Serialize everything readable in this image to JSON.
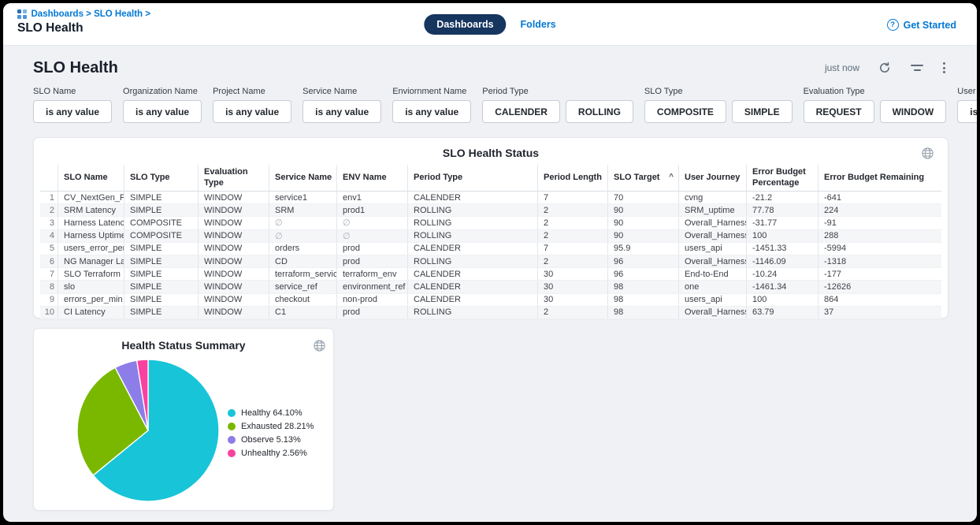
{
  "topbar": {
    "breadcrumb": "Dashboards > SLO Health >",
    "title": "SLO Health",
    "tabs": [
      {
        "label": "Dashboards",
        "active": true
      },
      {
        "label": "Folders",
        "active": false
      }
    ],
    "get_started": "Get Started"
  },
  "header": {
    "title": "SLO Health",
    "updated": "just now"
  },
  "icons": {
    "help": "?",
    "sort_ascending": "^"
  },
  "filters": [
    {
      "label": "SLO Name",
      "buttons": [
        "is any value"
      ]
    },
    {
      "label": "Organization Name",
      "buttons": [
        "is any value"
      ]
    },
    {
      "label": "Project Name",
      "buttons": [
        "is any value"
      ]
    },
    {
      "label": "Service Name",
      "buttons": [
        "is any value"
      ]
    },
    {
      "label": "Enviornment Name",
      "buttons": [
        "is any value"
      ]
    },
    {
      "label": "Period Type",
      "buttons": [
        "CALENDER",
        "ROLLING"
      ]
    },
    {
      "label": "SLO Type",
      "buttons": [
        "COMPOSITE",
        "SIMPLE"
      ]
    },
    {
      "label": "Evaluation Type",
      "buttons": [
        "REQUEST",
        "WINDOW"
      ]
    },
    {
      "label": "User Journey",
      "buttons": [
        "is any value"
      ]
    }
  ],
  "table": {
    "title": "SLO Health Status",
    "columns": [
      "SLO Name",
      "SLO Type",
      "Evaluation Type",
      "Service Name",
      "ENV Name",
      "Period Type",
      "Period Length",
      "SLO Target",
      "User Journey",
      "Error Budget Percentage",
      "Error Budget Remaining"
    ],
    "sort_column_index": 7,
    "sort_direction": "asc",
    "null_symbol": "∅",
    "rows": [
      [
        "CV_NextGen_Prod",
        "SIMPLE",
        "WINDOW",
        "service1",
        "env1",
        "CALENDER",
        "7",
        "70",
        "cvng",
        "-21.2",
        "-641"
      ],
      [
        "SRM Latency",
        "SIMPLE",
        "WINDOW",
        "SRM",
        "prod1",
        "ROLLING",
        "2",
        "90",
        "SRM_uptime",
        "77.78",
        "224"
      ],
      [
        "Harness Latency",
        "COMPOSITE",
        "WINDOW",
        "∅",
        "∅",
        "ROLLING",
        "2",
        "90",
        "Overall_Harness",
        "-31.77",
        "-91"
      ],
      [
        "Harness Uptime",
        "COMPOSITE",
        "WINDOW",
        "∅",
        "∅",
        "ROLLING",
        "2",
        "90",
        "Overall_Harness",
        "100",
        "288"
      ],
      [
        "users_error_per_min",
        "SIMPLE",
        "WINDOW",
        "orders",
        "prod",
        "CALENDER",
        "7",
        "95.9",
        "users_api",
        "-1451.33",
        "-5994"
      ],
      [
        "NG Manager Latency",
        "SIMPLE",
        "WINDOW",
        "CD",
        "prod",
        "ROLLING",
        "2",
        "96",
        "Overall_Harness",
        "-1146.09",
        "-1318"
      ],
      [
        "SLO Terraform",
        "SIMPLE",
        "WINDOW",
        "terraform_service",
        "terraform_env",
        "CALENDER",
        "30",
        "96",
        "End-to-End",
        "-10.24",
        "-177"
      ],
      [
        "slo",
        "SIMPLE",
        "WINDOW",
        "service_ref",
        "environment_ref",
        "CALENDER",
        "30",
        "98",
        "one",
        "-1461.34",
        "-12626"
      ],
      [
        "errors_per_min",
        "SIMPLE",
        "WINDOW",
        "checkout",
        "non-prod",
        "CALENDER",
        "30",
        "98",
        "users_api",
        "100",
        "864"
      ],
      [
        "CI Latency",
        "SIMPLE",
        "WINDOW",
        "C1",
        "prod",
        "ROLLING",
        "2",
        "98",
        "Overall_Harness",
        "63.79",
        "37"
      ]
    ]
  },
  "chart_data": {
    "type": "pie",
    "title": "Health Status Summary",
    "labels": [
      "Healthy",
      "Exhausted",
      "Observe",
      "Unhealthy"
    ],
    "values": [
      64.1,
      28.21,
      5.13,
      2.56
    ],
    "colors": [
      "#18c4d8",
      "#7ab800",
      "#8d7de9",
      "#f9419f"
    ],
    "legend": [
      "Healthy 64.10%",
      "Exhausted 28.21%",
      "Observe 5.13%",
      "Unhealthy 2.56%"
    ],
    "legend_position": "right",
    "start_angle": 0,
    "direction": "clockwise"
  },
  "colors": {
    "accent_blue": "#0278d5",
    "active_pill_navy": "#16355f",
    "page_background": "#eff1f4",
    "card_background": "#ffffff",
    "row_stripe": "#f5f6f8"
  }
}
